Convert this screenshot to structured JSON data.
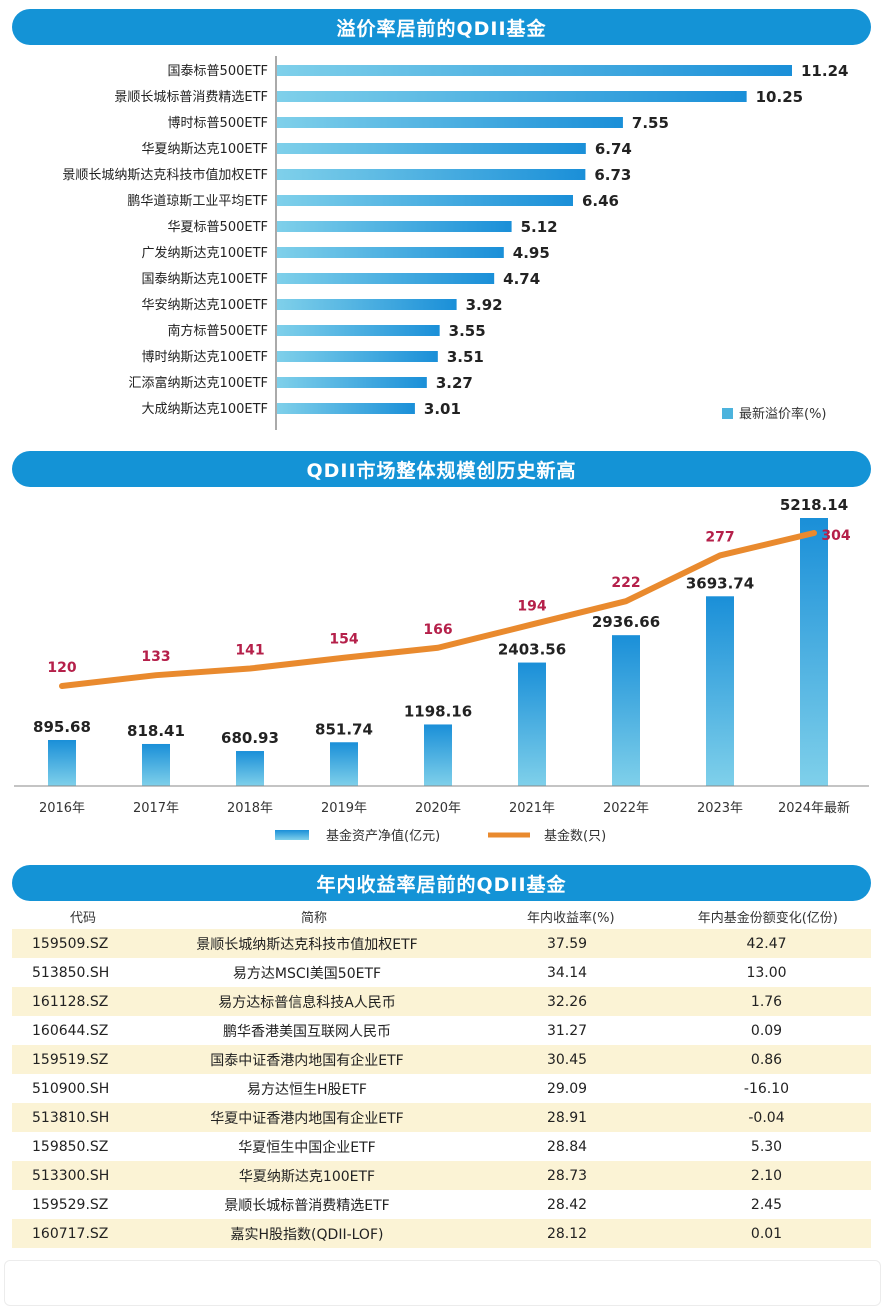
{
  "sections": {
    "premium_title": "溢价率居前的QDII基金",
    "scale_title": "QDII市场整体规模创历史新高",
    "return_title": "年内收益率居前的QDII基金"
  },
  "chart_data": [
    {
      "type": "bar",
      "orientation": "horizontal",
      "title": "溢价率居前的QDII基金",
      "categories": [
        "国泰标普500ETF",
        "景顺长城标普消费精选ETF",
        "博时标普500ETF",
        "华夏纳斯达克100ETF",
        "景顺长城纳斯达克科技市值加权ETF",
        "鹏华道琼斯工业平均ETF",
        "华夏标普500ETF",
        "广发纳斯达克100ETF",
        "国泰纳斯达克100ETF",
        "华安纳斯达克100ETF",
        "南方标普500ETF",
        "博时纳斯达克100ETF",
        "汇添富纳斯达克100ETF",
        "大成纳斯达克100ETF"
      ],
      "values": [
        11.24,
        10.25,
        7.55,
        6.74,
        6.73,
        6.46,
        5.12,
        4.95,
        4.74,
        3.92,
        3.55,
        3.51,
        3.27,
        3.01
      ],
      "value_labels": [
        "11.24",
        "10.25",
        "7.55",
        "6.74",
        "6.73",
        "6.46",
        "5.12",
        "4.95",
        "4.74",
        "3.92",
        "3.55",
        "3.51",
        "3.27",
        "3.01"
      ],
      "legend": "最新溢价率(%)",
      "xlim": [
        0,
        12
      ]
    },
    {
      "type": "bar+line",
      "title": "QDII市场整体规模创历史新高",
      "categories": [
        "2016年",
        "2017年",
        "2018年",
        "2019年",
        "2020年",
        "2021年",
        "2022年",
        "2023年",
        "2024年最新"
      ],
      "series": [
        {
          "name": "基金资产净值(亿元)",
          "type": "bar",
          "values": [
            895.68,
            818.41,
            680.93,
            851.74,
            1198.16,
            2403.56,
            2936.66,
            3693.74,
            5218.14
          ],
          "labels": [
            "895.68",
            "818.41",
            "680.93",
            "851.74",
            "1198.16",
            "2403.56",
            "2936.66",
            "3693.74",
            "5218.14"
          ]
        },
        {
          "name": "基金数(只)",
          "type": "line",
          "values": [
            120,
            133,
            141,
            154,
            166,
            194,
            222,
            277,
            304
          ],
          "labels": [
            "120",
            "133",
            "141",
            "154",
            "166",
            "194",
            "222",
            "277",
            "304"
          ]
        }
      ],
      "bar_ylim": [
        0,
        5600
      ],
      "line_ylim": [
        0,
        330
      ]
    }
  ],
  "table": {
    "headers": [
      "代码",
      "简称",
      "年内收益率(%)",
      "年内基金份额变化(亿份)"
    ],
    "rows": [
      {
        "code": "159509.SZ",
        "name": "景顺长城纳斯达克科技市值加权ETF",
        "ret": "37.59",
        "chg": "42.47"
      },
      {
        "code": "513850.SH",
        "name": "易方达MSCI美国50ETF",
        "ret": "34.14",
        "chg": "13.00"
      },
      {
        "code": "161128.SZ",
        "name": "易方达标普信息科技A人民币",
        "ret": "32.26",
        "chg": "1.76"
      },
      {
        "code": "160644.SZ",
        "name": "鹏华香港美国互联网人民币",
        "ret": "31.27",
        "chg": "0.09"
      },
      {
        "code": "159519.SZ",
        "name": "国泰中证香港内地国有企业ETF",
        "ret": "30.45",
        "chg": "0.86"
      },
      {
        "code": "510900.SH",
        "name": "易方达恒生H股ETF",
        "ret": "29.09",
        "chg": "-16.10"
      },
      {
        "code": "513810.SH",
        "name": "华夏中证香港内地国有企业ETF",
        "ret": "28.91",
        "chg": "-0.04"
      },
      {
        "code": "159850.SZ",
        "name": "华夏恒生中国企业ETF",
        "ret": "28.84",
        "chg": "5.30"
      },
      {
        "code": "513300.SH",
        "name": "华夏纳斯达克100ETF",
        "ret": "28.73",
        "chg": "2.10"
      },
      {
        "code": "159529.SZ",
        "name": "景顺长城标普消费精选ETF",
        "ret": "28.42",
        "chg": "2.45"
      },
      {
        "code": "160717.SZ",
        "name": "嘉实H股指数(QDII-LOF)",
        "ret": "28.12",
        "chg": "0.01"
      }
    ]
  },
  "colors": {
    "banner": "#1493d6",
    "bar_top": "#1a8fd8",
    "bar_bottom": "#7fd0ea",
    "line": "#e98a2e",
    "line_label": "#b5204a",
    "row_stripe": "#fbf3d5"
  }
}
